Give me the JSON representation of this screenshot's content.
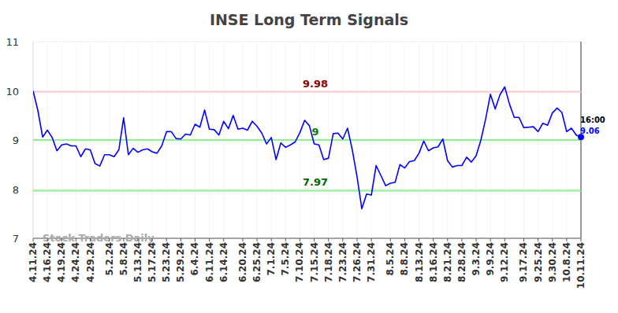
{
  "chart_data": {
    "type": "line",
    "title": "INSE Long Term Signals",
    "watermark": "Stock Traders Daily",
    "categories": [
      "4.11.24",
      null,
      null,
      "4.16.24",
      null,
      null,
      "4.19.24",
      null,
      null,
      "4.24.24",
      null,
      null,
      "4.29.24",
      null,
      null,
      null,
      "5.2.24",
      null,
      null,
      "5.8.24",
      null,
      null,
      "5.13.24",
      null,
      null,
      "5.17.24",
      null,
      null,
      "5.23.24",
      null,
      null,
      "5.29.24",
      null,
      null,
      "6.4.24",
      null,
      null,
      "6.11.24",
      null,
      null,
      "6.14.24",
      null,
      null,
      null,
      "6.20.24",
      null,
      null,
      "6.25.24",
      null,
      null,
      "7.1.24",
      null,
      null,
      "7.5.24",
      null,
      null,
      "7.10.24",
      null,
      null,
      "7.15.24",
      null,
      null,
      "7.18.24",
      null,
      null,
      "7.23.24",
      null,
      null,
      "7.26.24",
      null,
      null,
      "7.31.24",
      null,
      null,
      null,
      "8.5.24",
      null,
      null,
      "8.8.24",
      null,
      null,
      "8.13.24",
      null,
      null,
      "8.16.24",
      null,
      null,
      "8.21.24",
      null,
      null,
      "8.28.24",
      null,
      null,
      "9.3.24",
      null,
      null,
      "9.9.24",
      null,
      null,
      "9.12.24",
      null,
      null,
      null,
      "9.17.24",
      null,
      null,
      "9.25.24",
      null,
      null,
      "9.30.24",
      null,
      null,
      "10.8.24",
      null,
      null,
      "10.11.24"
    ],
    "series": [
      {
        "name": "INSE",
        "color": "#0000ff",
        "values": [
          10.0,
          9.6,
          9.06,
          9.2,
          9.05,
          8.78,
          8.9,
          8.92,
          8.88,
          8.88,
          8.66,
          8.82,
          8.8,
          8.52,
          8.47,
          8.7,
          8.7,
          8.66,
          8.8,
          9.45,
          8.7,
          8.83,
          8.75,
          8.8,
          8.82,
          8.76,
          8.73,
          8.88,
          9.17,
          9.17,
          9.03,
          9.02,
          9.12,
          9.1,
          9.32,
          9.26,
          9.61,
          9.22,
          9.21,
          9.1,
          9.38,
          9.23,
          9.5,
          9.22,
          9.24,
          9.2,
          9.38,
          9.28,
          9.14,
          8.92,
          9.05,
          8.6,
          8.94,
          8.85,
          8.9,
          8.96,
          9.15,
          9.4,
          9.29,
          8.92,
          8.9,
          8.6,
          8.63,
          9.13,
          9.14,
          9.02,
          9.24,
          8.8,
          8.25,
          7.6,
          7.9,
          7.88,
          8.48,
          8.28,
          8.07,
          8.12,
          8.14,
          8.5,
          8.43,
          8.56,
          8.58,
          8.73,
          8.98,
          8.78,
          8.84,
          8.86,
          9.02,
          8.58,
          8.45,
          8.48,
          8.48,
          8.65,
          8.55,
          8.68,
          9.0,
          9.43,
          9.93,
          9.63,
          9.92,
          10.08,
          9.73,
          9.46,
          9.46,
          9.25,
          9.26,
          9.27,
          9.17,
          9.34,
          9.3,
          9.55,
          9.65,
          9.56,
          9.17,
          9.24,
          9.1,
          9.06
        ]
      }
    ],
    "ylim": [
      7,
      11
    ],
    "yticks": [
      7,
      8,
      9,
      10,
      11
    ],
    "grid": true,
    "annotations": [
      {
        "value": 9.98,
        "label": "9.98",
        "color": "#ffcccc",
        "label_color": "#8b0000"
      },
      {
        "value": 9,
        "label": "9",
        "color": "#90ee90",
        "label_color": "#008000"
      },
      {
        "value": 7.97,
        "label": "7.97",
        "color": "#90ee90",
        "label_color": "#006400"
      }
    ],
    "last_point": {
      "time": "16:00",
      "value_label": "9.06"
    }
  }
}
